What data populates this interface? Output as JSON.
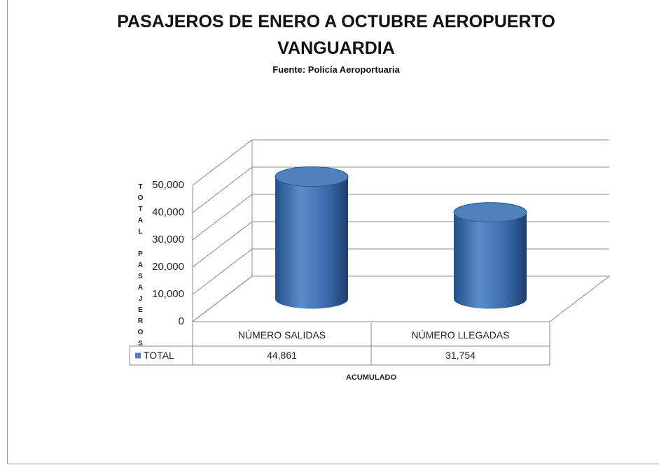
{
  "chart_data": {
    "type": "bar3d_cylinder",
    "title": "PASAJEROS DE ENERO A OCTUBRE  AEROPUERTO VANGUARDIA",
    "subtitle": "Fuente: Policía Aeroportuaria",
    "x_label": "ACUMULADO",
    "y_label": "TOTAL PASAJEROS",
    "categories": [
      "NÚMERO SALIDAS",
      "NÚMERO LLEGADAS"
    ],
    "series": [
      {
        "name": "TOTAL",
        "color": "#4f81bd",
        "values": [
          44861,
          31754
        ],
        "value_labels": [
          "44,861",
          "31,754"
        ]
      }
    ],
    "ylim": [
      0,
      50000
    ],
    "yticks": [
      0,
      {
        "value": 10000,
        "label": "10,000"
      },
      {
        "value": 20000,
        "label": "20,000"
      },
      {
        "value": 30000,
        "label": "30,000"
      },
      {
        "value": 40000,
        "label": "40,000"
      },
      {
        "value": 50000,
        "label": "50,000"
      }
    ],
    "grid": true
  }
}
